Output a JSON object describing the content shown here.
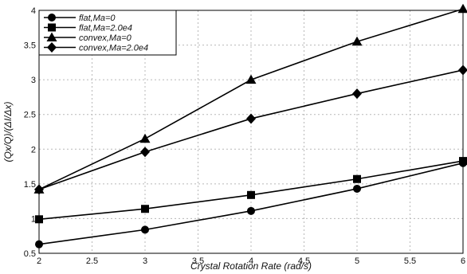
{
  "chart_data": {
    "type": "line",
    "xlabel": "Crystal Rotation Rate (rad/s)",
    "ylabel": "(Qx/Q)/(ΔI/Δx)",
    "xlim": [
      2,
      6
    ],
    "ylim": [
      0.5,
      4
    ],
    "x_ticks": [
      2,
      2.5,
      3,
      3.5,
      4,
      4.5,
      5,
      5.5,
      6
    ],
    "y_ticks": [
      0.5,
      1,
      1.5,
      2,
      2.5,
      3,
      3.5,
      4
    ],
    "grid": true,
    "legend_position": "top-left",
    "x": [
      2,
      3,
      4,
      5,
      6
    ],
    "series": [
      {
        "name": "flat,Ma=0",
        "marker": "circle",
        "values": [
          0.63,
          0.84,
          1.11,
          1.43,
          1.8
        ]
      },
      {
        "name": "flat,Ma=2.0e4",
        "marker": "square",
        "values": [
          0.99,
          1.14,
          1.34,
          1.57,
          1.83
        ]
      },
      {
        "name": "convex,Ma=0",
        "marker": "triangle",
        "values": [
          1.42,
          2.15,
          3.0,
          3.55,
          4.02
        ]
      },
      {
        "name": "convex,Ma=2.0e4",
        "marker": "diamond",
        "values": [
          1.42,
          1.96,
          2.44,
          2.8,
          3.14
        ]
      }
    ],
    "colors": {
      "line": "#000000",
      "grid": "#b8b8b8"
    }
  }
}
